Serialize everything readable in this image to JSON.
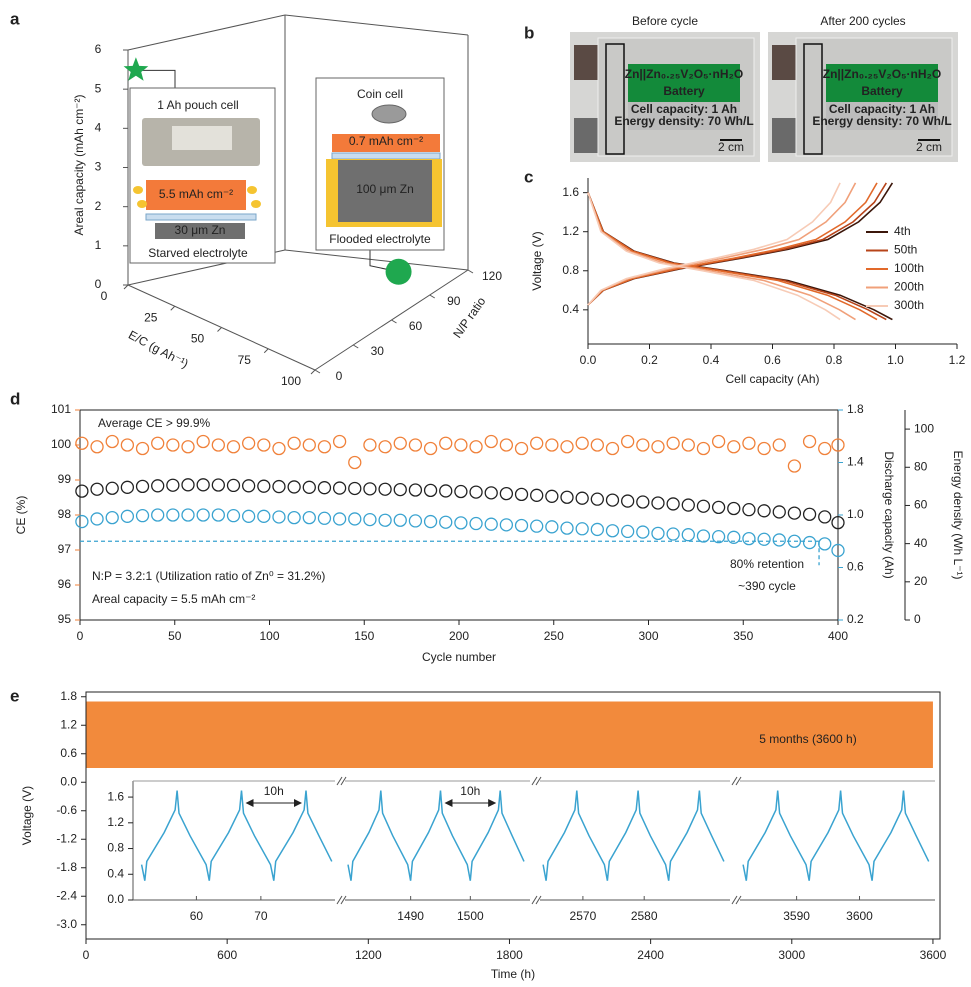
{
  "panel_labels": [
    "a",
    "b",
    "c",
    "d",
    "e"
  ],
  "photos": {
    "titles": [
      "Before cycle",
      "After 200 cycles"
    ],
    "label_title": "Zn||Zn₀.₂₅V₂O₅·nH₂O",
    "label_subtitle": "Battery",
    "label_lines": [
      "Cell capacity: 1 Ah",
      "Energy density: 70 Wh/L"
    ],
    "scale_bar": "2 cm"
  },
  "chart_data": [
    {
      "type": "scatter3d",
      "xlabel": "E/C (g Ah⁻¹)",
      "ylabel": "N/P ratio",
      "zlabel": "Areal capacity (mAh cm⁻²)",
      "xlim": [
        0,
        100
      ],
      "xticks": [
        0,
        25,
        50,
        75,
        100
      ],
      "ylim": [
        0,
        120
      ],
      "yticks": [
        0,
        30,
        60,
        90,
        120
      ],
      "zlim": [
        0,
        6
      ],
      "zticks": [
        0,
        1,
        2,
        3,
        4,
        5,
        6
      ],
      "points": [
        {
          "name": "1 Ah pouch cell",
          "marker": "star",
          "color": "#1fa84f",
          "x": 2,
          "y": 3.2,
          "z": 5.5,
          "annotations": [
            "5.5 mAh cm⁻²",
            "30 μm Zn",
            "Starved electrolyte"
          ]
        },
        {
          "name": "Coin cell",
          "marker": "circle",
          "color": "#1fa84f",
          "x": 90,
          "y": 80,
          "z": 0.7,
          "annotations": [
            "0.7 mAh cm⁻²",
            "100 μm Zn",
            "Flooded electrolyte"
          ]
        }
      ]
    },
    {
      "type": "line",
      "xlabel": "Cell capacity (Ah)",
      "ylabel": "Voltage (V)",
      "xlim": [
        0,
        1.2
      ],
      "xticks": [
        {
          "value": 0,
          "label": "0.0"
        },
        0.2,
        0.4,
        0.6,
        0.8,
        {
          "value": 1,
          "label": "1.0"
        },
        1.2
      ],
      "ylim": [
        0.05,
        1.75
      ],
      "yticks": [
        0.4,
        0.8,
        1.2,
        1.6
      ],
      "legend": "right",
      "series": [
        {
          "name": "4th",
          "color": "#3b160a",
          "x": [
            0,
            0.05,
            0.15,
            0.28,
            0.45,
            0.65,
            0.82,
            0.93,
            0.99,
            null,
            0,
            0.05,
            0.15,
            0.3,
            0.5,
            0.65,
            0.78,
            0.88,
            0.95,
            0.99
          ],
          "values": [
            1.6,
            1.2,
            1.0,
            0.88,
            0.8,
            0.7,
            0.55,
            0.4,
            0.3,
            null,
            0.45,
            0.6,
            0.72,
            0.82,
            0.93,
            1.02,
            1.12,
            1.3,
            1.5,
            1.7
          ]
        },
        {
          "name": "50th",
          "color": "#b7441a",
          "x": [
            0,
            0.049,
            0.147,
            0.274,
            0.441,
            0.637,
            0.804,
            0.911,
            0.97,
            null,
            0,
            0.049,
            0.147,
            0.294,
            0.49,
            0.637,
            0.764,
            0.862,
            0.931,
            0.97
          ],
          "values": [
            1.6,
            1.2,
            1.0,
            0.88,
            0.8,
            0.7,
            0.55,
            0.4,
            0.3,
            null,
            0.45,
            0.6,
            0.72,
            0.82,
            0.93,
            1.02,
            1.12,
            1.3,
            1.5,
            1.7
          ]
        },
        {
          "name": "100th",
          "color": "#e2692a",
          "x": [
            0,
            0.048,
            0.143,
            0.266,
            0.428,
            0.618,
            0.779,
            0.884,
            0.94,
            null,
            0,
            0.048,
            0.143,
            0.285,
            0.475,
            0.618,
            0.741,
            0.836,
            0.903,
            0.94
          ],
          "values": [
            1.6,
            1.2,
            1.0,
            0.88,
            0.8,
            0.7,
            0.55,
            0.4,
            0.3,
            null,
            0.45,
            0.6,
            0.72,
            0.82,
            0.93,
            1.02,
            1.12,
            1.3,
            1.5,
            1.7
          ]
        },
        {
          "name": "200th",
          "color": "#f0a07a",
          "x": [
            0,
            0.044,
            0.132,
            0.246,
            0.396,
            0.572,
            0.722,
            0.818,
            0.87,
            null,
            0,
            0.044,
            0.132,
            0.264,
            0.44,
            0.572,
            0.686,
            0.774,
            0.836,
            0.87
          ],
          "values": [
            1.6,
            1.2,
            1.0,
            0.88,
            0.8,
            0.7,
            0.55,
            0.4,
            0.3,
            null,
            0.45,
            0.6,
            0.72,
            0.82,
            0.93,
            1.02,
            1.12,
            1.3,
            1.5,
            1.7
          ]
        },
        {
          "name": "300th",
          "color": "#f7cbb6",
          "x": [
            0,
            0.042,
            0.125,
            0.232,
            0.374,
            0.54,
            0.681,
            0.772,
            0.82,
            null,
            0,
            0.042,
            0.125,
            0.249,
            0.415,
            0.54,
            0.647,
            0.73,
            0.789,
            0.82
          ],
          "values": [
            1.6,
            1.2,
            1.0,
            0.88,
            0.8,
            0.7,
            0.55,
            0.4,
            0.3,
            null,
            0.45,
            0.6,
            0.72,
            0.82,
            0.93,
            1.02,
            1.12,
            1.3,
            1.5,
            1.7
          ]
        }
      ]
    },
    {
      "type": "scatter",
      "xlabel": "Cycle number",
      "ylabel": "CE (%)",
      "y2label": "Discharge capacity (Ah)",
      "y3label": "Energy density (Wh L⁻¹)",
      "xlim": [
        0,
        400
      ],
      "xticks": [
        0,
        50,
        100,
        150,
        200,
        250,
        300,
        350,
        400
      ],
      "ylim": [
        95,
        101
      ],
      "yticks": [
        95,
        96,
        97,
        98,
        99,
        100,
        101
      ],
      "y2lim": [
        0.2,
        1.8
      ],
      "y2ticks": [
        0.2,
        0.6,
        {
          "value": 1,
          "label": "1.0"
        },
        1.4,
        1.8
      ],
      "y3lim": [
        0,
        110
      ],
      "y3ticks": [
        0,
        20,
        40,
        60,
        80,
        100
      ],
      "x": [
        1,
        9,
        17,
        25,
        33,
        41,
        49,
        57,
        65,
        73,
        81,
        89,
        97,
        105,
        113,
        121,
        129,
        137,
        145,
        153,
        161,
        169,
        177,
        185,
        193,
        201,
        209,
        217,
        225,
        233,
        241,
        249,
        257,
        265,
        273,
        281,
        289,
        297,
        305,
        313,
        321,
        329,
        337,
        345,
        353,
        361,
        369,
        377,
        385,
        393,
        400
      ],
      "series": [
        {
          "axis": "y",
          "color": "#f0813a",
          "values": [
            100.05,
            99.95,
            100.1,
            100,
            99.9,
            100.05,
            100,
            99.95,
            100.1,
            100,
            99.95,
            100.05,
            100,
            99.9,
            100.05,
            100,
            99.95,
            100.1,
            99.5,
            100,
            99.95,
            100.05,
            100,
            99.9,
            100.05,
            100,
            99.95,
            100.1,
            100,
            99.9,
            100.05,
            100,
            99.95,
            100.05,
            100,
            99.9,
            100.1,
            100,
            99.95,
            100.05,
            100,
            99.9,
            100.1,
            99.95,
            100.05,
            99.9,
            100,
            99.4,
            100.1,
            99.9,
            100
          ]
        },
        {
          "axis": "y3",
          "color": "#222222",
          "values": [
            67.5,
            68.5,
            69,
            69.5,
            70,
            70.3,
            70.6,
            70.8,
            70.8,
            70.7,
            70.5,
            70.3,
            70.1,
            69.9,
            69.7,
            69.5,
            69.3,
            69.1,
            68.9,
            68.7,
            68.5,
            68.3,
            68.1,
            67.9,
            67.6,
            67.3,
            67,
            66.6,
            66.2,
            65.8,
            65.3,
            64.8,
            64.3,
            63.8,
            63.3,
            62.8,
            62.3,
            61.8,
            61.3,
            60.8,
            60.2,
            59.6,
            59,
            58.4,
            57.8,
            57.2,
            56.6,
            56,
            55.4,
            54,
            51
          ]
        },
        {
          "axis": "y2",
          "color": "#3aa3d0",
          "values": [
            0.95,
            0.97,
            0.98,
            0.99,
            0.995,
            1.0,
            1.0,
            1.0,
            1.0,
            1.0,
            0.995,
            0.99,
            0.99,
            0.985,
            0.98,
            0.98,
            0.975,
            0.97,
            0.97,
            0.965,
            0.96,
            0.96,
            0.955,
            0.95,
            0.945,
            0.94,
            0.935,
            0.93,
            0.925,
            0.92,
            0.915,
            0.91,
            0.9,
            0.895,
            0.89,
            0.88,
            0.875,
            0.87,
            0.86,
            0.855,
            0.85,
            0.84,
            0.835,
            0.83,
            0.82,
            0.815,
            0.81,
            0.8,
            0.79,
            0.78,
            0.73
          ]
        }
      ],
      "reference_lines": [
        {
          "axis": "y2",
          "value": 0.8
        },
        {
          "axis": "x",
          "value": 390
        }
      ],
      "annotations": [
        "Average CE > 99.9%",
        "N:P = 3.2:1 (Utilization ratio of Zn⁰ = 31.2%)",
        "Areal capacity = 5.5 mAh cm⁻²",
        "80% retention",
        "~390 cycle"
      ]
    },
    {
      "type": "line",
      "xlabel": "Time (h)",
      "ylabel": "Voltage (V)",
      "xlim": [
        0,
        3630
      ],
      "xticks": [
        0,
        600,
        1200,
        1800,
        2400,
        3000,
        3600
      ],
      "ylim": [
        -3.3,
        1.9
      ],
      "yticks": [
        1.8,
        1.2,
        0.6,
        {
          "value": 0,
          "label": "0.0"
        },
        -0.6,
        -1.2,
        -1.8,
        -2.4,
        {
          "value": -3,
          "label": "-3.0"
        }
      ],
      "band": {
        "color": "#f28a3c",
        "x": [
          0,
          3600
        ],
        "low": 0.3,
        "high": 1.7
      },
      "annotations": [
        "5 months (3600 h)"
      ],
      "inset": {
        "color": "#3aa3d0",
        "ylim": [
          0,
          1.85
        ],
        "yticks": [
          {
            "value": 0,
            "label": "0.0"
          },
          0.4,
          0.8,
          1.2,
          1.6
        ],
        "annotations": [
          "10h",
          "10h"
        ],
        "segments": [
          {
            "xlim": [
              51.25,
              81.5
            ],
            "xticks": [
              60,
              70
            ],
            "x": [
              51.5,
              52,
              52.3,
              55,
              56.7,
              57,
              57.3,
              59,
              61.5,
              62,
              62.3,
              65,
              66.7,
              67,
              67.3,
              69,
              71.5,
              72,
              72.3,
              75,
              76.7,
              77,
              77.3,
              79,
              81
            ],
            "values": [
              0.55,
              0.3,
              0.6,
              1.05,
              1.4,
              1.7,
              1.35,
              1.0,
              0.55,
              0.3,
              0.6,
              1.05,
              1.4,
              1.7,
              1.35,
              1.0,
              0.55,
              0.3,
              0.6,
              1.05,
              1.4,
              1.7,
              1.35,
              1.0,
              0.6
            ]
          },
          {
            "xlim": [
              1479,
              1510
            ],
            "xticks": [
              1490,
              1500
            ],
            "x": [
              1479.5,
              1480,
              1480.3,
              1483,
              1484.7,
              1485,
              1485.3,
              1487,
              1489.5,
              1490,
              1490.3,
              1493,
              1494.7,
              1495,
              1495.3,
              1497,
              1499.5,
              1500,
              1500.3,
              1503,
              1504.7,
              1505,
              1505.3,
              1507,
              1509
            ],
            "values": [
              0.55,
              0.3,
              0.6,
              1.05,
              1.4,
              1.7,
              1.35,
              1.0,
              0.55,
              0.3,
              0.6,
              1.05,
              1.4,
              1.7,
              1.35,
              1.0,
              0.55,
              0.3,
              0.6,
              1.05,
              1.4,
              1.7,
              1.35,
              1.0,
              0.6
            ]
          },
          {
            "xlim": [
              2563,
              2594
            ],
            "xticks": [
              2570,
              2580
            ],
            "x": [
              2563.5,
              2564,
              2564.3,
              2567,
              2568.7,
              2569,
              2569.3,
              2571,
              2573.5,
              2574,
              2574.3,
              2577,
              2578.7,
              2579,
              2579.3,
              2581,
              2583.5,
              2584,
              2584.3,
              2587,
              2588.7,
              2589,
              2589.3,
              2591,
              2593
            ],
            "values": [
              0.55,
              0.3,
              0.6,
              1.05,
              1.4,
              1.7,
              1.35,
              1.0,
              0.55,
              0.3,
              0.6,
              1.05,
              1.4,
              1.7,
              1.35,
              1.0,
              0.55,
              0.3,
              0.6,
              1.05,
              1.4,
              1.7,
              1.35,
              1.0,
              0.6
            ]
          },
          {
            "xlim": [
              3581,
              3612
            ],
            "xticks": [
              3590,
              3600
            ],
            "x": [
              3581.5,
              3582,
              3582.3,
              3585,
              3586.7,
              3587,
              3587.3,
              3589,
              3591.5,
              3592,
              3592.3,
              3595,
              3596.7,
              3597,
              3597.3,
              3599,
              3601.5,
              3602,
              3602.3,
              3605,
              3606.7,
              3607,
              3607.3,
              3609,
              3611
            ],
            "values": [
              0.55,
              0.3,
              0.6,
              1.05,
              1.4,
              1.7,
              1.35,
              1.0,
              0.55,
              0.3,
              0.6,
              1.05,
              1.4,
              1.7,
              1.35,
              1.0,
              0.55,
              0.3,
              0.6,
              1.05,
              1.4,
              1.7,
              1.35,
              1.0,
              0.6
            ]
          }
        ]
      }
    }
  ]
}
